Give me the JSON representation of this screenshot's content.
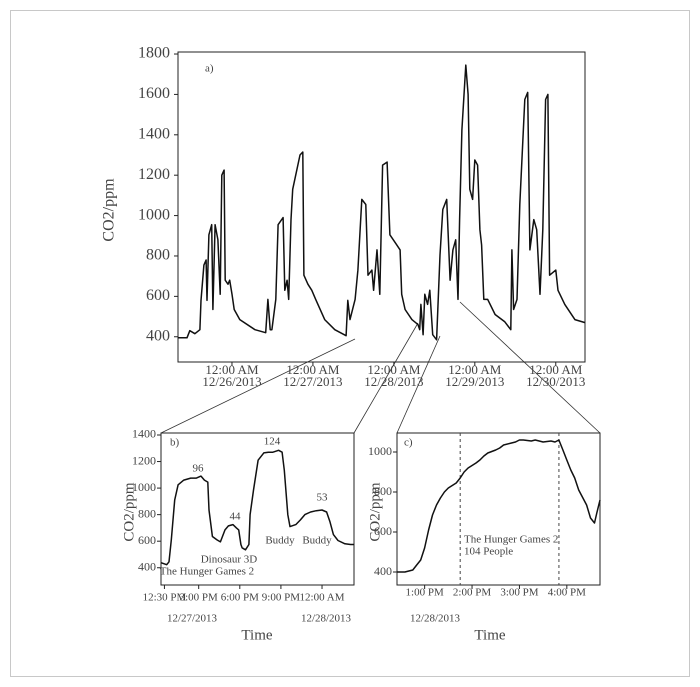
{
  "chart_data": [
    {
      "type": "line",
      "panel": "a)",
      "ylabel": "CO2/ppm",
      "color": "#111111",
      "ylim": [
        275,
        1810
      ],
      "yticks": [
        400,
        600,
        800,
        1000,
        1200,
        1400,
        1600,
        1800
      ],
      "xlim": [
        "2013-12-25T08:00",
        "2013-12-30T08:40"
      ],
      "xticks": [
        {
          "value": "2013-12-26T00:00",
          "label": [
            "12:00 AM",
            "12/26/2013"
          ]
        },
        {
          "value": "2013-12-27T00:00",
          "label": [
            "12:00 AM",
            "12/27/2013"
          ]
        },
        {
          "value": "2013-12-28T00:00",
          "label": [
            "12:00 AM",
            "12/28/2013"
          ]
        },
        {
          "value": "2013-12-29T00:00",
          "label": [
            "12:00 AM",
            "12/29/2013"
          ]
        },
        {
          "value": "2013-12-30T00:00",
          "label": [
            "12:00 AM",
            "12/30/2013"
          ]
        }
      ],
      "x": [
        "2013-12-25T08:00",
        "2013-12-25T10:40",
        "2013-12-25T11:30",
        "2013-12-25T13:00",
        "2013-12-25T14:30",
        "2013-12-25T14:50",
        "2013-12-25T15:40",
        "2013-12-25T16:20",
        "2013-12-25T16:35",
        "2013-12-25T17:10",
        "2013-12-25T18:00",
        "2013-12-25T18:20",
        "2013-12-25T19:00",
        "2013-12-25T19:50",
        "2013-12-25T20:30",
        "2013-12-25T21:00",
        "2013-12-25T21:40",
        "2013-12-25T22:00",
        "2013-12-25T22:50",
        "2013-12-25T23:20",
        "2013-12-26T00:00",
        "2013-12-26T00:40",
        "2013-12-26T02:20",
        "2013-12-26T06:50",
        "2013-12-26T10:00",
        "2013-12-26T10:40",
        "2013-12-26T11:20",
        "2013-12-26T11:50",
        "2013-12-26T13:00",
        "2013-12-26T13:40",
        "2013-12-26T15:10",
        "2013-12-26T15:40",
        "2013-12-26T16:20",
        "2013-12-26T16:50",
        "2013-12-26T17:30",
        "2013-12-26T18:00",
        "2013-12-26T20:10",
        "2013-12-26T21:00",
        "2013-12-26T21:20",
        "2013-12-26T22:30",
        "2013-12-26T23:40",
        "2013-12-27T00:50",
        "2013-12-27T03:30",
        "2013-12-27T06:30",
        "2013-12-27T09:50",
        "2013-12-27T10:20",
        "2013-12-27T11:00",
        "2013-12-27T12:30",
        "2013-12-27T13:20",
        "2013-12-27T14:30",
        "2013-12-27T15:40",
        "2013-12-27T16:20",
        "2013-12-27T17:30",
        "2013-12-27T18:00",
        "2013-12-27T19:00",
        "2013-12-27T19:50",
        "2013-12-27T20:40",
        "2013-12-27T22:00",
        "2013-12-27T22:50",
        "2013-12-28T00:40",
        "2013-12-28T01:50",
        "2013-12-28T02:20",
        "2013-12-28T03:20",
        "2013-12-28T05:20",
        "2013-12-28T07:10",
        "2013-12-28T07:40",
        "2013-12-28T08:00",
        "2013-12-28T08:40",
        "2013-12-28T09:10",
        "2013-12-28T10:00",
        "2013-12-28T10:40",
        "2013-12-28T11:30",
        "2013-12-28T12:40",
        "2013-12-28T13:40",
        "2013-12-28T14:30",
        "2013-12-28T15:40",
        "2013-12-28T16:40",
        "2013-12-28T17:30",
        "2013-12-28T18:20",
        "2013-12-28T19:00",
        "2013-12-28T19:30",
        "2013-12-28T20:10",
        "2013-12-28T21:20",
        "2013-12-28T22:00",
        "2013-12-28T22:30",
        "2013-12-28T23:20",
        "2013-12-29T00:00",
        "2013-12-29T00:50",
        "2013-12-29T01:30",
        "2013-12-29T02:00",
        "2013-12-29T02:40",
        "2013-12-29T03:50",
        "2013-12-29T06:00",
        "2013-12-29T08:50",
        "2013-12-29T10:40",
        "2013-12-29T11:00",
        "2013-12-29T11:30",
        "2013-12-29T12:30",
        "2013-12-29T13:20",
        "2013-12-29T14:50",
        "2013-12-29T15:40",
        "2013-12-29T16:20",
        "2013-12-29T17:30",
        "2013-12-29T18:20",
        "2013-12-29T19:20",
        "2013-12-29T20:10",
        "2013-12-29T21:00",
        "2013-12-29T21:40",
        "2013-12-29T22:10",
        "2013-12-30T00:00",
        "2013-12-30T00:40",
        "2013-12-30T02:40",
        "2013-12-30T05:40",
        "2013-12-30T08:40"
      ],
      "values": [
        395,
        395,
        430,
        415,
        435,
        580,
        755,
        780,
        580,
        905,
        955,
        535,
        955,
        880,
        610,
        1200,
        1225,
        680,
        660,
        680,
        610,
        535,
        485,
        435,
        420,
        585,
        435,
        435,
        585,
        955,
        990,
        630,
        680,
        585,
        980,
        1130,
        1300,
        1315,
        705,
        660,
        630,
        585,
        485,
        435,
        405,
        580,
        485,
        585,
        730,
        1080,
        1055,
        705,
        730,
        630,
        830,
        610,
        1250,
        1265,
        905,
        860,
        830,
        610,
        535,
        485,
        460,
        435,
        560,
        410,
        610,
        560,
        630,
        410,
        385,
        805,
        1030,
        1080,
        680,
        830,
        880,
        585,
        980,
        1425,
        1745,
        1600,
        1130,
        1080,
        1275,
        1250,
        930,
        855,
        585,
        585,
        510,
        475,
        435,
        830,
        535,
        585,
        1055,
        1575,
        1610,
        830,
        980,
        930,
        610,
        930,
        1575,
        1600,
        705,
        730,
        630,
        560,
        485,
        470
      ]
    },
    {
      "type": "line",
      "panel": "b)",
      "ylabel": "CO2/ppm",
      "xlabel": "Time",
      "color": "#111111",
      "ylim": [
        270,
        1415
      ],
      "yticks": [
        400,
        600,
        800,
        1000,
        1200,
        1400
      ],
      "xlim": [
        "2013-12-27T12:15",
        "2013-12-28T02:20"
      ],
      "xticks": [
        {
          "value": "2013-12-27T12:30",
          "label": "12:30 PM"
        },
        {
          "value": "2013-12-27T15:00",
          "label": "3:00 PM"
        },
        {
          "value": "2013-12-27T18:00",
          "label": "6:00 PM"
        },
        {
          "value": "2013-12-27T21:00",
          "label": "9:00 PM"
        },
        {
          "value": "2013-12-28T00:00",
          "label": "12:00 AM"
        }
      ],
      "dates": [
        "12/27/2013",
        "12/28/2013"
      ],
      "annotations": [
        "96",
        "44",
        "124",
        "53",
        "Dinosaur 3D",
        "The Hunger Games 2",
        "Buddy",
        "Buddy"
      ],
      "x": [
        "2013-12-27T12:15",
        "2013-12-27T12:40",
        "2013-12-27T12:50",
        "2013-12-27T13:00",
        "2013-12-27T13:15",
        "2013-12-27T13:30",
        "2013-12-27T13:55",
        "2013-12-27T14:25",
        "2013-12-27T14:50",
        "2013-12-27T15:10",
        "2013-12-27T15:25",
        "2013-12-27T15:40",
        "2013-12-27T15:45",
        "2013-12-27T16:00",
        "2013-12-27T16:20",
        "2013-12-27T16:35",
        "2013-12-27T16:55",
        "2013-12-27T17:10",
        "2013-12-27T17:30",
        "2013-12-27T17:45",
        "2013-12-27T17:55",
        "2013-12-27T18:05",
        "2013-12-27T18:10",
        "2013-12-27T18:25",
        "2013-12-27T18:40",
        "2013-12-27T18:45",
        "2013-12-27T19:00",
        "2013-12-27T19:20",
        "2013-12-27T19:45",
        "2013-12-27T20:05",
        "2013-12-27T20:25",
        "2013-12-27T20:50",
        "2013-12-27T21:05",
        "2013-12-27T21:15",
        "2013-12-27T21:30",
        "2013-12-27T21:40",
        "2013-12-27T22:05",
        "2013-12-27T22:25",
        "2013-12-27T22:45",
        "2013-12-27T23:10",
        "2013-12-27T23:35",
        "2013-12-28T00:00",
        "2013-12-28T00:20",
        "2013-12-28T00:35",
        "2013-12-28T00:50",
        "2013-12-28T01:10",
        "2013-12-28T01:40",
        "2013-12-28T02:05",
        "2013-12-28T02:20"
      ],
      "values": [
        438,
        423,
        445,
        610,
        910,
        1025,
        1060,
        1075,
        1075,
        1090,
        1060,
        1045,
        835,
        635,
        610,
        595,
        685,
        715,
        725,
        700,
        685,
        575,
        550,
        535,
        575,
        800,
        985,
        1210,
        1265,
        1270,
        1270,
        1285,
        1270,
        1135,
        800,
        710,
        725,
        760,
        800,
        820,
        830,
        835,
        820,
        745,
        650,
        605,
        580,
        575,
        575
      ]
    },
    {
      "type": "line",
      "panel": "c)",
      "ylabel": "CO2/ppm",
      "xlabel": "Time",
      "color": "#111111",
      "ylim": [
        335,
        1095
      ],
      "yticks": [
        400,
        600,
        800,
        1000
      ],
      "xlim": [
        "2013-12-28T12:25",
        "2013-12-28T16:42"
      ],
      "xticks": [
        {
          "value": "2013-12-28T13:00",
          "label": "1:00 PM"
        },
        {
          "value": "2013-12-28T14:00",
          "label": "2:00 PM"
        },
        {
          "value": "2013-12-28T15:00",
          "label": "3:00 PM"
        },
        {
          "value": "2013-12-28T16:00",
          "label": "4:00 PM"
        }
      ],
      "dates": [
        "12/28/2013"
      ],
      "events": [
        "2013-12-28T13:45",
        "2013-12-28T15:50"
      ],
      "annotations": [
        "The Hunger Games 2",
        "104 People"
      ],
      "x": [
        "2013-12-28T12:25",
        "2013-12-28T12:35",
        "2013-12-28T12:45",
        "2013-12-28T12:50",
        "2013-12-28T12:55",
        "2013-12-28T13:00",
        "2013-12-28T13:05",
        "2013-12-28T13:10",
        "2013-12-28T13:15",
        "2013-12-28T13:20",
        "2013-12-28T13:25",
        "2013-12-28T13:30",
        "2013-12-28T13:40",
        "2013-12-28T13:45",
        "2013-12-28T13:50",
        "2013-12-28T13:55",
        "2013-12-28T14:05",
        "2013-12-28T14:10",
        "2013-12-28T14:15",
        "2013-12-28T14:20",
        "2013-12-28T14:30",
        "2013-12-28T14:35",
        "2013-12-28T14:40",
        "2013-12-28T14:50",
        "2013-12-28T14:55",
        "2013-12-28T15:00",
        "2013-12-28T15:05",
        "2013-12-28T15:15",
        "2013-12-28T15:20",
        "2013-12-28T15:25",
        "2013-12-28T15:30",
        "2013-12-28T15:40",
        "2013-12-28T15:45",
        "2013-12-28T15:50",
        "2013-12-28T15:55",
        "2013-12-28T16:00",
        "2013-12-28T16:05",
        "2013-12-28T16:10",
        "2013-12-28T16:15",
        "2013-12-28T16:25",
        "2013-12-28T16:30",
        "2013-12-28T16:35",
        "2013-12-28T16:38",
        "2013-12-28T16:42"
      ],
      "values": [
        400,
        400,
        410,
        435,
        460,
        520,
        610,
        685,
        735,
        770,
        800,
        820,
        845,
        870,
        900,
        920,
        945,
        960,
        980,
        995,
        1010,
        1020,
        1035,
        1045,
        1050,
        1060,
        1060,
        1055,
        1060,
        1055,
        1050,
        1055,
        1050,
        1060,
        1010,
        960,
        910,
        870,
        810,
        735,
        670,
        645,
        695,
        760
      ]
    }
  ]
}
